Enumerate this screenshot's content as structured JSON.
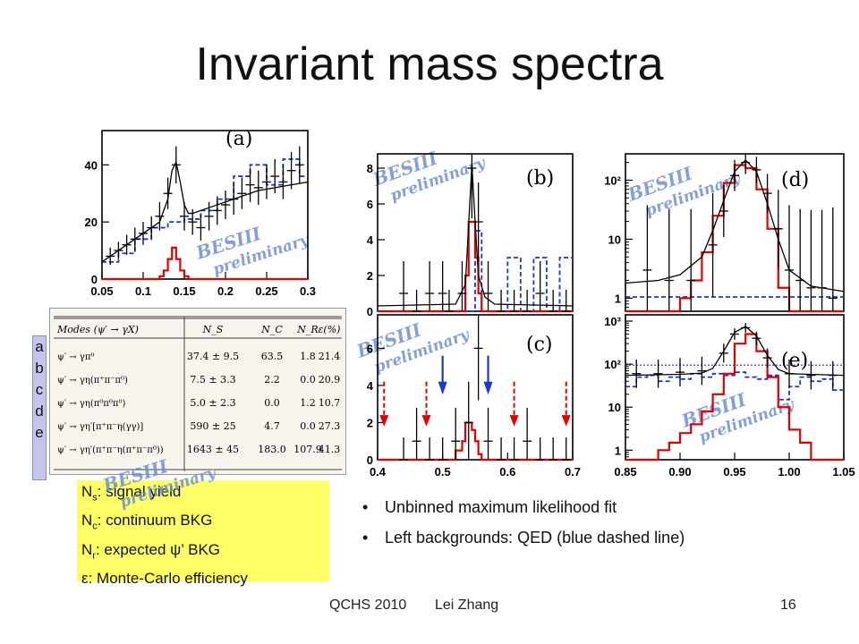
{
  "title": "Invariant mass spectra",
  "watermark": {
    "line1": "BESIII",
    "line2": "preliminary"
  },
  "colors": {
    "data": "#000000",
    "fit": "#000000",
    "signal": "#e00000",
    "qed": "#1b35d6",
    "legend_bg": "#ffff66",
    "letters_bg": "#c3c6e9",
    "watermark": "#6f8fd6"
  },
  "chart_data": [
    {
      "id": "a",
      "type": "line",
      "panel_label": "(a)",
      "yscale": "linear",
      "xlim": [
        0.05,
        0.3
      ],
      "ylim": [
        0,
        52
      ],
      "xticks": [
        0.05,
        0.1,
        0.15,
        0.2,
        0.25,
        0.3
      ],
      "xtick_labels": [
        "0.05",
        "0.1",
        "0.15",
        "0.2",
        "0.25",
        "0.3"
      ],
      "yticks": [
        0,
        20,
        40
      ],
      "ytick_labels": [
        "0",
        "20",
        "40"
      ],
      "data": {
        "x": [
          0.06,
          0.07,
          0.08,
          0.09,
          0.1,
          0.11,
          0.12,
          0.13,
          0.14,
          0.15,
          0.16,
          0.17,
          0.18,
          0.19,
          0.2,
          0.21,
          0.22,
          0.23,
          0.24,
          0.25,
          0.26,
          0.27,
          0.28,
          0.29
        ],
        "y": [
          8,
          10,
          12,
          14,
          16,
          18,
          22,
          30,
          40,
          22,
          20,
          18,
          22,
          24,
          26,
          28,
          30,
          33,
          32,
          34,
          36,
          34,
          38,
          40
        ],
        "err": [
          3,
          3,
          3.5,
          4,
          4,
          4,
          5,
          5.5,
          6.5,
          5,
          4.5,
          4.5,
          5,
          5,
          5,
          5.5,
          5.5,
          6,
          6,
          6,
          6,
          6,
          6.5,
          6.5
        ]
      },
      "fit": {
        "x": [
          0.05,
          0.07,
          0.09,
          0.11,
          0.12,
          0.13,
          0.135,
          0.14,
          0.145,
          0.15,
          0.155,
          0.16,
          0.18,
          0.2,
          0.22,
          0.24,
          0.26,
          0.28,
          0.3
        ],
        "y": [
          6,
          10,
          14,
          18,
          20,
          28,
          38,
          41,
          34,
          26,
          23,
          23,
          25,
          27,
          29,
          31,
          32,
          33,
          34
        ]
      },
      "signal": {
        "edges": [
          0.05,
          0.12,
          0.125,
          0.13,
          0.135,
          0.14,
          0.145,
          0.15,
          0.155,
          0.3
        ],
        "values": [
          0,
          1,
          3,
          7,
          11,
          7,
          3,
          1,
          0
        ]
      },
      "qed": {
        "edges": [
          0.05,
          0.07,
          0.09,
          0.11,
          0.13,
          0.15,
          0.17,
          0.19,
          0.21,
          0.23,
          0.25,
          0.27,
          0.29,
          0.3
        ],
        "values": [
          6,
          9,
          14,
          18,
          20,
          21,
          24,
          28,
          36,
          40,
          33,
          42,
          36
        ]
      }
    },
    {
      "id": "b",
      "type": "line",
      "panel_label": "(b)",
      "yscale": "linear",
      "xlim": [
        0.4,
        0.7
      ],
      "ylim": [
        0,
        8.8
      ],
      "yticks": [
        0,
        2,
        4,
        6,
        8
      ],
      "ytick_labels": [
        "0",
        "2",
        "4",
        "6",
        "8"
      ],
      "data": {
        "x": [
          0.44,
          0.46,
          0.48,
          0.5,
          0.51,
          0.53,
          0.545,
          0.555,
          0.57,
          0.59,
          0.61,
          0.63,
          0.65,
          0.67,
          0.69
        ],
        "y": [
          1,
          0,
          1,
          1,
          0,
          1,
          8,
          5,
          1,
          0,
          0,
          0,
          1,
          0,
          0
        ],
        "err": [
          1.8,
          1.2,
          1.8,
          1.8,
          1.2,
          1.8,
          2.8,
          2.2,
          1.8,
          1.2,
          1.2,
          1.2,
          1.8,
          1.2,
          1.2
        ]
      },
      "fit": {
        "x": [
          0.4,
          0.52,
          0.535,
          0.545,
          0.55,
          0.555,
          0.565,
          0.58,
          0.7
        ],
        "y": [
          0.3,
          0.4,
          1.5,
          8.2,
          5,
          2,
          0.8,
          0.4,
          0.3
        ]
      },
      "signal": {
        "edges": [
          0.4,
          0.535,
          0.54,
          0.545,
          0.55,
          0.555,
          0.56,
          0.7
        ],
        "values": [
          0,
          2,
          5,
          5,
          3,
          1,
          0
        ]
      },
      "qed": {
        "edges": [
          0.4,
          0.53,
          0.55,
          0.56,
          0.6,
          0.62,
          0.64,
          0.66,
          0.68,
          0.7
        ],
        "values": [
          0,
          0,
          4.5,
          0,
          3,
          0,
          3,
          0,
          3
        ]
      }
    },
    {
      "id": "c",
      "type": "line",
      "panel_label": "(c)",
      "yscale": "linear",
      "xlim": [
        0.4,
        0.7
      ],
      "ylim": [
        0,
        7.8
      ],
      "xticks": [
        0.4,
        0.5,
        0.6,
        0.7
      ],
      "xtick_labels": [
        "0.4",
        "0.5",
        "0.6",
        "0.7"
      ],
      "yticks": [
        0,
        2,
        4,
        6
      ],
      "ytick_labels": [
        "0",
        "2",
        "4",
        "6"
      ],
      "data": {
        "x": [
          0.44,
          0.46,
          0.48,
          0.5,
          0.52,
          0.54,
          0.555,
          0.57,
          0.59,
          0.61,
          0.63,
          0.65,
          0.67,
          0.69
        ],
        "y": [
          0,
          1,
          0,
          0,
          1,
          2,
          6,
          1,
          0,
          0,
          1,
          0,
          0,
          0
        ],
        "err": [
          1.2,
          1.8,
          1.2,
          1.2,
          1.8,
          2.2,
          2.8,
          1.8,
          1.2,
          1.2,
          1.8,
          1.2,
          1.2,
          1.2
        ]
      },
      "signal": {
        "edges": [
          0.4,
          0.52,
          0.53,
          0.535,
          0.54,
          0.545,
          0.55,
          0.555,
          0.56,
          0.7
        ],
        "values": [
          0,
          0.5,
          1,
          2,
          2,
          1.6,
          1,
          0.3,
          0
        ]
      },
      "markers": {
        "red": [
          0.41,
          0.475,
          0.61,
          0.69
        ],
        "blue": [
          0.5,
          0.57
        ]
      }
    },
    {
      "id": "d",
      "type": "line",
      "panel_label": "(d)",
      "yscale": "log",
      "xlim": [
        0.85,
        1.05
      ],
      "ylim": [
        0.6,
        280
      ],
      "yticks": [
        1,
        10,
        100
      ],
      "ytick_labels": [
        "1",
        "10",
        "10²"
      ],
      "data": {
        "x": [
          0.87,
          0.89,
          0.91,
          0.93,
          0.94,
          0.95,
          0.96,
          0.97,
          0.98,
          0.99,
          1.0,
          1.01,
          1.02,
          1.03,
          1.04
        ],
        "y": [
          3,
          2,
          2,
          8,
          30,
          120,
          200,
          150,
          60,
          15,
          3,
          2,
          1.5,
          1.5,
          1
        ],
        "err": [
          0.5,
          0.55,
          0.55,
          0.4,
          0.2,
          0.12,
          0.09,
          0.1,
          0.15,
          0.3,
          0.5,
          0.55,
          0.6,
          0.6,
          0.7
        ]
      },
      "fit": {
        "x": [
          0.85,
          0.88,
          0.9,
          0.92,
          0.93,
          0.94,
          0.95,
          0.96,
          0.97,
          0.98,
          0.99,
          1.0,
          1.02,
          1.05
        ],
        "y": [
          1.8,
          2,
          2.5,
          5,
          14,
          45,
          140,
          220,
          140,
          40,
          10,
          3,
          1.6,
          1.3
        ]
      },
      "signal": {
        "edges": [
          0.85,
          0.9,
          0.91,
          0.92,
          0.93,
          0.94,
          0.95,
          0.96,
          0.97,
          0.98,
          0.99,
          1.0,
          1.05
        ],
        "values": [
          0,
          1,
          2,
          6,
          25,
          90,
          180,
          160,
          70,
          15,
          1.5,
          0
        ]
      },
      "qed": {
        "edges": [
          0.85,
          1.05
        ],
        "values": [
          1.05
        ]
      }
    },
    {
      "id": "e",
      "type": "line",
      "panel_label": "(e)",
      "yscale": "log",
      "xlim": [
        0.85,
        1.05
      ],
      "ylim": [
        0.6,
        1400
      ],
      "xticks": [
        0.85,
        0.9,
        0.95,
        1.0,
        1.05
      ],
      "xtick_labels": [
        "0.85",
        "0.90",
        "0.95",
        "1.00",
        "1.05"
      ],
      "yticks": [
        1,
        10,
        100,
        1000
      ],
      "ytick_labels": [
        "1",
        "10",
        "10²",
        "10³"
      ],
      "data": {
        "x": [
          0.86,
          0.88,
          0.9,
          0.92,
          0.94,
          0.95,
          0.96,
          0.97,
          0.98,
          1.0,
          1.02,
          1.04
        ],
        "y": [
          60,
          60,
          65,
          70,
          180,
          500,
          700,
          400,
          140,
          60,
          55,
          55
        ],
        "err": [
          0.15,
          0.15,
          0.15,
          0.15,
          0.1,
          0.06,
          0.05,
          0.07,
          0.1,
          0.15,
          0.15,
          0.15
        ]
      },
      "fit": {
        "x": [
          0.85,
          0.9,
          0.92,
          0.93,
          0.94,
          0.95,
          0.96,
          0.97,
          0.98,
          0.99,
          1.0,
          1.05
        ],
        "y": [
          55,
          58,
          62,
          80,
          200,
          550,
          750,
          450,
          160,
          75,
          60,
          55
        ]
      },
      "signal": {
        "edges": [
          0.85,
          0.88,
          0.89,
          0.9,
          0.91,
          0.92,
          0.93,
          0.94,
          0.95,
          0.96,
          0.97,
          0.98,
          0.99,
          1.0,
          1.01,
          1.02,
          1.05
        ],
        "values": [
          0,
          1,
          1.5,
          2.5,
          4,
          8,
          20,
          60,
          300,
          500,
          200,
          50,
          10,
          3,
          1.5,
          0
        ]
      },
      "qed": {
        "edges": [
          0.85,
          0.86,
          0.87,
          0.88,
          0.89,
          0.9,
          0.91,
          0.92,
          0.93,
          0.94,
          0.95,
          0.96,
          0.97,
          0.98,
          0.99,
          1.0,
          1.01,
          1.02,
          1.03,
          1.04,
          1.05
        ],
        "values": [
          30,
          50,
          55,
          40,
          50,
          45,
          60,
          50,
          60,
          55,
          65,
          50,
          45,
          55,
          15,
          30,
          50,
          40,
          45,
          25
        ]
      },
      "qed_flat": 95
    }
  ],
  "table": {
    "headers": [
      "Modes (ψ′ → γX)",
      "N_S",
      "N_C",
      "N_R",
      "ε(%)"
    ],
    "rows": [
      [
        "ψ′ → γπ⁰",
        "37.4 ± 9.5",
        "63.5",
        "1.8",
        "21.4"
      ],
      [
        "ψ′ → γη(π⁺π⁻π⁰)",
        "7.5 ± 3.3",
        "2.2",
        "0.0",
        "20.9"
      ],
      [
        "ψ′ → γη(π⁰π⁰π⁰)",
        "5.0 ± 2.3",
        "0.0",
        "1.2",
        "10.7"
      ],
      [
        "ψ′ → γη′[π⁺π⁻η(γγ)]",
        "590 ± 25",
        "4.7",
        "0.0",
        "27.3"
      ],
      [
        "ψ′ → γη′(π⁺π⁻η(π⁺π⁻π⁰))",
        "1643 ± 45",
        "183.0",
        "107.9",
        "41.3"
      ]
    ]
  },
  "row_letters": [
    "a",
    "b",
    "c",
    "d",
    "e"
  ],
  "legend": [
    {
      "sym": "N",
      "sub": "s",
      "text": ": signal yield"
    },
    {
      "sym": "N",
      "sub": "c",
      "text": ": continuum BKG"
    },
    {
      "sym": "N",
      "sub": "r",
      "text": ": expected ψ’ BKG"
    },
    {
      "sym": "ε",
      "sub": "",
      "text": ": Monte-Carlo efficiency"
    }
  ],
  "bullets": [
    "Unbinned maximum likelihood fit",
    "Left backgrounds: QED (blue dashed line)"
  ],
  "footer": {
    "conference": "QCHS 2010",
    "author": "Lei Zhang",
    "page": "16"
  }
}
